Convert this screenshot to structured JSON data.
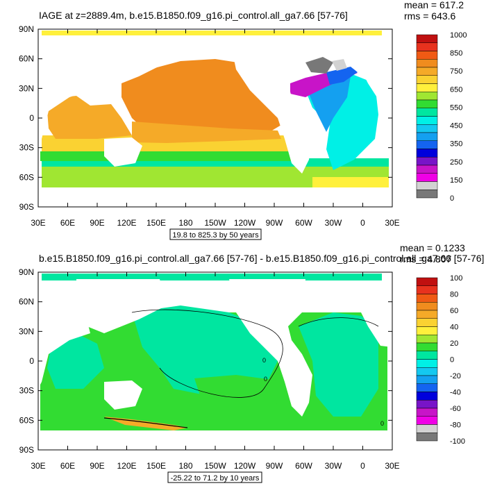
{
  "chart_data": [
    {
      "type": "heatmap",
      "title": "IAGE at z=2889.4m, b.e15.B1850.f09_g16.pi_control.all_ga7.66 [57-76]",
      "stats": [
        "mean = 617.2",
        "rms = 643.6"
      ],
      "x_tick_labels": [
        "30E",
        "60E",
        "90E",
        "120E",
        "150E",
        "180",
        "150W",
        "120W",
        "90W",
        "60W",
        "30W",
        "0",
        "30E"
      ],
      "y_tick_labels": [
        "90N",
        "60N",
        "30N",
        "0",
        "30S",
        "60S",
        "90S"
      ],
      "x_range_deg_east": [
        30,
        390
      ],
      "y_range_deg": [
        -90,
        90
      ],
      "contour_info": "19.8 to 825.3 by 50 years",
      "colorbar": {
        "labels": [
          "1000",
          "850",
          "750",
          "650",
          "550",
          "450",
          "350",
          "250",
          "150",
          "0"
        ],
        "colors": [
          "#c01010",
          "#e8321e",
          "#f05a14",
          "#f08c1e",
          "#f5aa28",
          "#fad232",
          "#fff03c",
          "#a0e632",
          "#32dc32",
          "#00e6a0",
          "#00f0e6",
          "#14c8f0",
          "#14a0f0",
          "#1464f0",
          "#0000dc",
          "#7814c8",
          "#c814c8",
          "#f000e6",
          "#d2d2d2",
          "#787878"
        ]
      }
    },
    {
      "type": "heatmap",
      "title": "b.e15.B1850.f09_g16.pi_control.all_ga7.66 [57-76] - b.e15.B1850.f09_g16.pi_control.all_ga7.66 [57-76]",
      "stats": [
        "mean = 0.1233",
        "rms = 4.807"
      ],
      "x_tick_labels": [
        "30E",
        "60E",
        "90E",
        "120E",
        "150E",
        "180",
        "150W",
        "120W",
        "90W",
        "60W",
        "30W",
        "0",
        "30E"
      ],
      "y_tick_labels": [
        "90N",
        "60N",
        "30N",
        "0",
        "30S",
        "60S",
        "90S"
      ],
      "x_range_deg_east": [
        30,
        390
      ],
      "y_range_deg": [
        -90,
        90
      ],
      "contour_info": "-25.22 to 71.2 by 10 years",
      "contour_labels": [
        "0",
        "0",
        "0"
      ],
      "colorbar": {
        "labels": [
          "100",
          "80",
          "60",
          "40",
          "20",
          "0",
          "-20",
          "-40",
          "-60",
          "-80",
          "-100"
        ],
        "colors": [
          "#c01010",
          "#e8321e",
          "#f05a14",
          "#f08c1e",
          "#f5aa28",
          "#fad232",
          "#fff03c",
          "#a0e632",
          "#32dc32",
          "#00e6a0",
          "#00f0e6",
          "#14c8f0",
          "#14a0f0",
          "#1464f0",
          "#0000dc",
          "#7814c8",
          "#c814c8",
          "#f000e6",
          "#d2d2d2",
          "#787878"
        ]
      }
    }
  ]
}
